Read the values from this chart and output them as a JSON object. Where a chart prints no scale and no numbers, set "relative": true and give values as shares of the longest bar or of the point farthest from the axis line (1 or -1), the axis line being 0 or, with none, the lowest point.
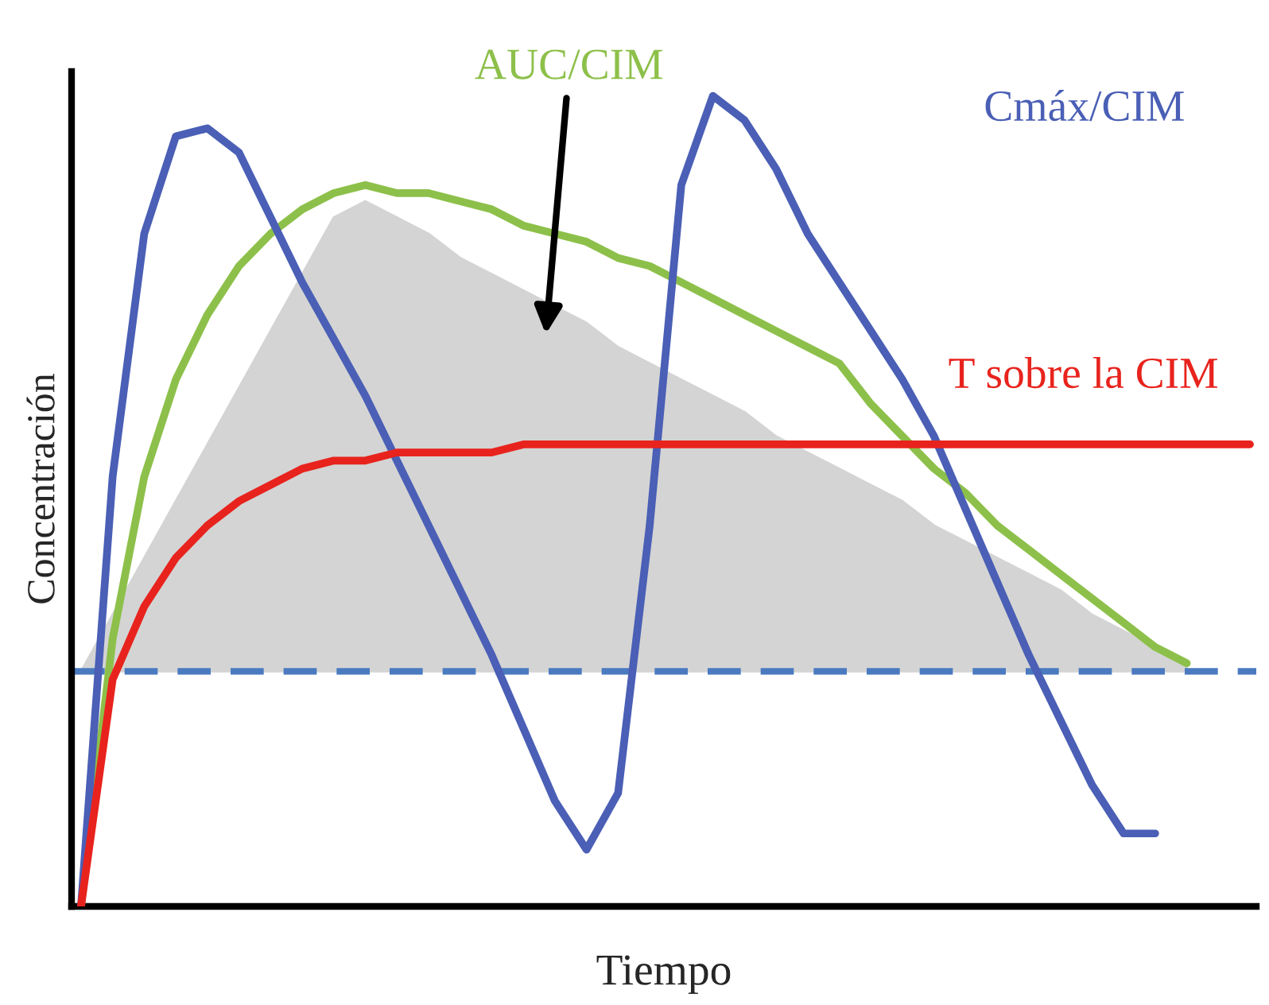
{
  "chart_data": {
    "type": "line",
    "relative": true,
    "xlabel": "Tiempo",
    "ylabel": "Concentración",
    "legend": false,
    "grid": false,
    "categories": [
      null,
      null,
      null,
      null,
      null,
      null,
      null,
      null,
      null,
      null,
      null,
      null,
      null,
      null,
      null,
      null,
      null,
      null,
      null,
      null,
      null,
      null,
      null,
      null,
      null,
      null,
      null,
      null,
      null,
      null,
      null,
      null,
      null,
      null,
      null,
      null,
      null,
      null
    ],
    "series": [
      {
        "type": "area",
        "color": "#d4d4d4",
        "values": [
          0.29,
          0.36,
          0.43,
          0.5,
          0.57,
          0.64,
          0.71,
          0.78,
          0.85,
          0.87,
          0.85,
          0.83,
          0.8,
          0.78,
          0.76,
          0.74,
          0.72,
          0.69,
          0.67,
          0.65,
          0.63,
          0.61,
          0.58,
          0.56,
          0.54,
          0.52,
          0.5,
          0.47,
          0.45,
          0.43,
          0.41,
          0.39,
          0.36,
          0.34,
          0.32,
          0.3,
          null,
          null
        ]
      },
      {
        "name": "AUC/CIM",
        "color": "#8dc04a",
        "values": [
          0,
          0.33,
          0.53,
          0.65,
          0.73,
          0.79,
          0.83,
          0.86,
          0.88,
          0.89,
          0.88,
          0.88,
          0.87,
          0.86,
          0.84,
          0.83,
          0.82,
          0.8,
          0.79,
          0.77,
          0.75,
          0.73,
          0.71,
          0.69,
          0.67,
          0.62,
          0.58,
          0.54,
          0.51,
          0.47,
          0.44,
          0.41,
          0.38,
          0.35,
          0.32,
          0.3,
          null,
          null
        ]
      },
      {
        "name": "Cmáx/CIM",
        "color": "#4a5fb5",
        "values": [
          0,
          0.53,
          0.83,
          0.95,
          0.96,
          0.93,
          0.85,
          0.77,
          0.7,
          0.63,
          0.55,
          0.47,
          0.39,
          0.31,
          0.22,
          0.13,
          0.07,
          0.14,
          0.47,
          0.89,
          1.0,
          0.97,
          0.91,
          0.83,
          0.77,
          0.71,
          0.65,
          0.58,
          0.49,
          0.4,
          0.31,
          0.23,
          0.15,
          0.09,
          0.09,
          null,
          null,
          null
        ]
      },
      {
        "name": "T sobre la CIM",
        "color": "#e8231d",
        "values": [
          0,
          0.28,
          0.37,
          0.43,
          0.47,
          0.5,
          0.52,
          0.54,
          0.55,
          0.55,
          0.56,
          0.56,
          0.56,
          0.56,
          0.57,
          0.57,
          0.57,
          0.57,
          0.57,
          0.57,
          0.57,
          0.57,
          0.57,
          0.57,
          0.57,
          0.57,
          0.57,
          0.57,
          0.57,
          0.57,
          0.57,
          0.57,
          0.57,
          0.57,
          0.57,
          0.57,
          0.57,
          0.57
        ]
      }
    ],
    "ref_lines": [
      {
        "axis": "y",
        "value": 0.29,
        "color": "#4a7ac0",
        "line_style": "dashed"
      }
    ]
  }
}
